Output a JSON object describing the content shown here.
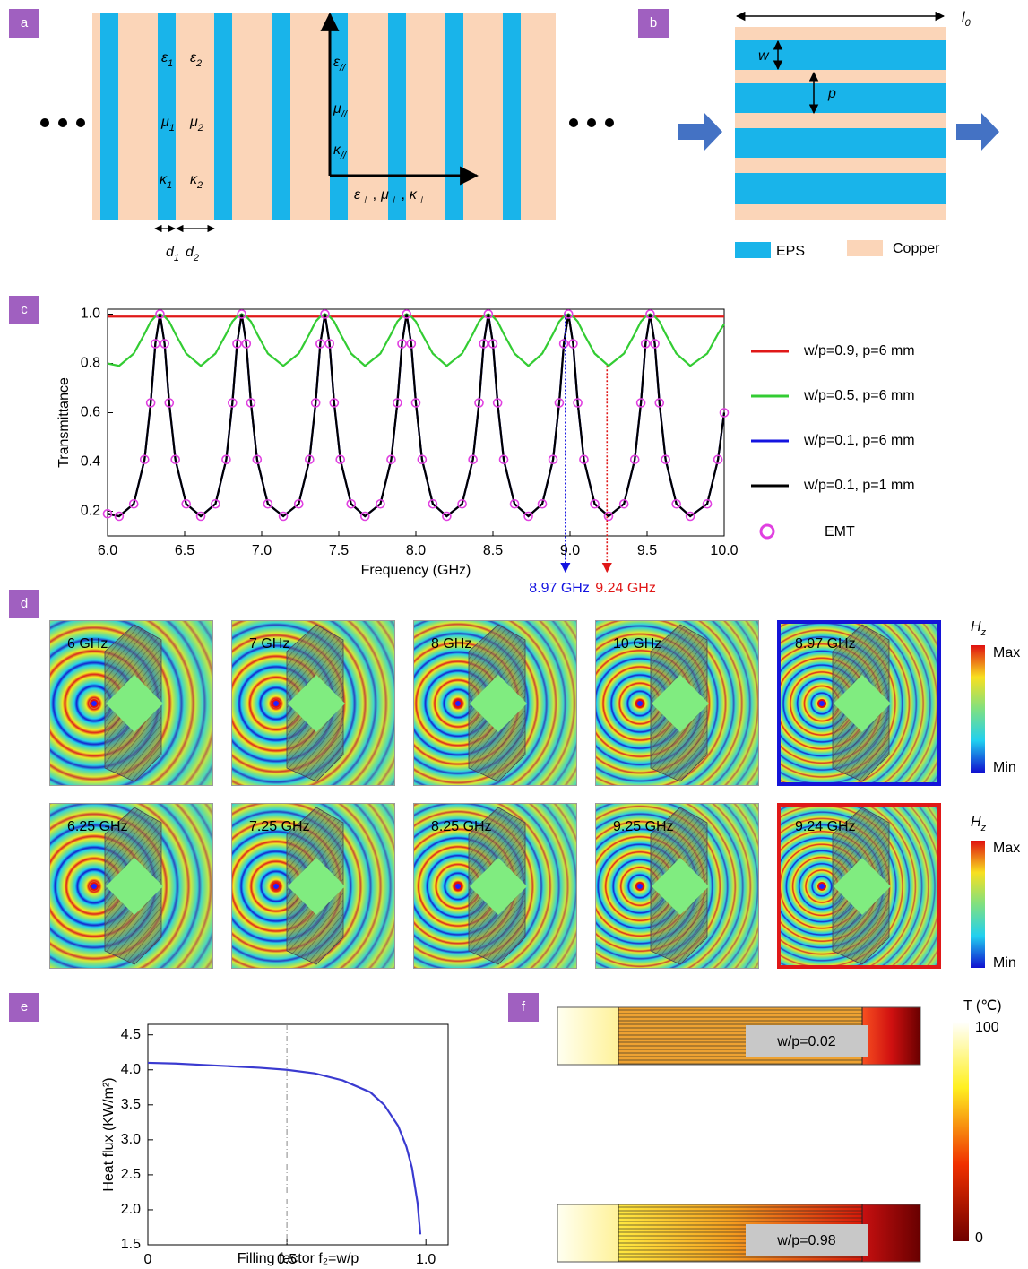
{
  "panel_labels": [
    "a",
    "b",
    "c",
    "d",
    "e",
    "f"
  ],
  "panel_a": {
    "layer_labels": [
      {
        "base": "ε",
        "sub": "1"
      },
      {
        "base": "ε",
        "sub": "2"
      },
      {
        "base": "μ",
        "sub": "1"
      },
      {
        "base": "μ",
        "sub": "2"
      },
      {
        "base": "κ",
        "sub": "1"
      },
      {
        "base": "κ",
        "sub": "2"
      }
    ],
    "parallel_labels": [
      {
        "base": "ε",
        "sub": "//"
      },
      {
        "base": "μ",
        "sub": "//"
      },
      {
        "base": "κ",
        "sub": "//"
      }
    ],
    "perp_labels": [
      {
        "base": "ε",
        "sub": "⊥"
      },
      {
        "base": "μ",
        "sub": "⊥"
      },
      {
        "base": "κ",
        "sub": "⊥"
      }
    ],
    "perp_separator": ",",
    "thickness_labels": [
      {
        "base": "d",
        "sub": "1"
      },
      {
        "base": "d",
        "sub": "2"
      }
    ]
  },
  "panel_b": {
    "length_label": {
      "base": "l",
      "sub": "0"
    },
    "w_label": "w",
    "p_label": "p",
    "legend": [
      "EPS",
      "Copper"
    ]
  },
  "panel_d": {
    "rows": [
      [
        "6 GHz",
        "7 GHz",
        "8 GHz",
        "10 GHz",
        "8.97 GHz"
      ],
      [
        "6.25 GHz",
        "7.25 GHz",
        "8.25 GHz",
        "9.25 GHz",
        "9.24 GHz"
      ]
    ],
    "colorbar": {
      "label": {
        "base": "H",
        "sub": "z"
      },
      "max": "Max",
      "min": "Min"
    }
  },
  "panel_f": {
    "labels": [
      "w/p=0.02",
      "w/p=0.98"
    ],
    "colorbar": {
      "label": "T (℃)",
      "max": "100",
      "min": "0"
    }
  },
  "chart_data": [
    {
      "type": "line",
      "xlabel": "Frequency (GHz)",
      "ylabel": "Transmittance",
      "xlim": [
        6,
        10
      ],
      "ylim": [
        0.1,
        1.02
      ],
      "xticks": [
        {
          "value": 6,
          "label": "6.0"
        },
        6.5,
        {
          "value": 7,
          "label": "7.0"
        },
        7.5,
        {
          "value": 8,
          "label": "8.0"
        },
        8.5,
        {
          "value": 9,
          "label": "9.0"
        },
        9.5,
        {
          "value": 10,
          "label": "10.0"
        }
      ],
      "yticks": [
        0.2,
        0.4,
        0.6,
        0.8,
        {
          "value": 1,
          "label": "1.0"
        }
      ],
      "grid": false,
      "legend": "right",
      "x": [
        6.0,
        6.075,
        6.17,
        6.24,
        6.28,
        6.31,
        6.34,
        6.37,
        6.4,
        6.44,
        6.51,
        6.605,
        6.7,
        6.77,
        6.81,
        6.84,
        6.87,
        6.9,
        6.93,
        6.97,
        7.04,
        7.14,
        7.24,
        7.31,
        7.35,
        7.38,
        7.41,
        7.44,
        7.47,
        7.51,
        7.58,
        7.67,
        7.77,
        7.84,
        7.88,
        7.91,
        7.94,
        7.97,
        8.0,
        8.04,
        8.11,
        8.2,
        8.3,
        8.37,
        8.41,
        8.44,
        8.47,
        8.5,
        8.53,
        8.57,
        8.64,
        8.73,
        8.82,
        8.89,
        8.93,
        8.96,
        8.99,
        9.02,
        9.05,
        9.09,
        9.16,
        9.25,
        9.35,
        9.42,
        9.46,
        9.49,
        9.52,
        9.55,
        9.58,
        9.62,
        9.69,
        9.78,
        9.89,
        9.96,
        10.0
      ],
      "series": [
        {
          "name": "w/p=0.9, p=6 mm",
          "color": "#e01818",
          "values": [
            0.99,
            0.99,
            0.99,
            0.99,
            0.99,
            0.99,
            0.99,
            0.99,
            0.99,
            0.99,
            0.99,
            0.99,
            0.99,
            0.99,
            0.99,
            0.99,
            0.99,
            0.99,
            0.99,
            0.99,
            0.99,
            0.99,
            0.99,
            0.99,
            0.99,
            0.99,
            0.99,
            0.99,
            0.99,
            0.99,
            0.99,
            0.99,
            0.99,
            0.99,
            0.99,
            0.99,
            0.99,
            0.99,
            0.99,
            0.99,
            0.99,
            0.99,
            0.99,
            0.99,
            0.99,
            0.99,
            0.99,
            0.99,
            0.99,
            0.99,
            0.99,
            0.99,
            0.99,
            0.99,
            0.99,
            0.99,
            0.99,
            0.99,
            0.99,
            0.99,
            0.99,
            0.99,
            0.99,
            0.99,
            0.99,
            0.99,
            0.99,
            0.99,
            0.99,
            0.99,
            0.99,
            0.99,
            0.99,
            0.99,
            0.99
          ]
        },
        {
          "name": "w/p=0.5, p=6 mm",
          "color": "#33cc33",
          "values": [
            0.8,
            0.79,
            0.84,
            0.92,
            0.97,
            0.99,
            1.0,
            0.99,
            0.97,
            0.92,
            0.84,
            0.79,
            0.84,
            0.92,
            0.97,
            0.99,
            1.0,
            0.99,
            0.97,
            0.92,
            0.84,
            0.79,
            0.84,
            0.92,
            0.97,
            0.99,
            1.0,
            0.99,
            0.97,
            0.92,
            0.84,
            0.79,
            0.84,
            0.92,
            0.97,
            0.99,
            1.0,
            0.99,
            0.97,
            0.92,
            0.84,
            0.79,
            0.84,
            0.92,
            0.97,
            0.99,
            1.0,
            0.99,
            0.97,
            0.92,
            0.84,
            0.79,
            0.84,
            0.92,
            0.97,
            0.99,
            1.0,
            0.99,
            0.97,
            0.92,
            0.84,
            0.79,
            0.84,
            0.92,
            0.97,
            0.99,
            1.0,
            0.99,
            0.97,
            0.92,
            0.84,
            0.79,
            0.84,
            0.92,
            0.96
          ]
        },
        {
          "name": "w/p=0.1, p=6 mm",
          "color": "#1414e0",
          "values": [
            0.19,
            0.18,
            0.23,
            0.41,
            0.64,
            0.88,
            1.0,
            0.88,
            0.64,
            0.41,
            0.23,
            0.18,
            0.23,
            0.41,
            0.64,
            0.88,
            1.0,
            0.88,
            0.64,
            0.41,
            0.23,
            0.18,
            0.23,
            0.41,
            0.64,
            0.88,
            1.0,
            0.88,
            0.64,
            0.41,
            0.23,
            0.18,
            0.23,
            0.41,
            0.64,
            0.88,
            1.0,
            0.88,
            0.64,
            0.41,
            0.23,
            0.18,
            0.23,
            0.41,
            0.64,
            0.88,
            1.0,
            0.88,
            0.64,
            0.41,
            0.23,
            0.18,
            0.23,
            0.41,
            0.64,
            0.88,
            1.0,
            0.88,
            0.64,
            0.41,
            0.23,
            0.18,
            0.23,
            0.41,
            0.64,
            0.88,
            1.0,
            0.88,
            0.64,
            0.41,
            0.23,
            0.18,
            0.23,
            0.41,
            0.6
          ]
        },
        {
          "name": "w/p=0.1, p=1 mm",
          "color": "#000000",
          "values": [
            0.19,
            0.18,
            0.23,
            0.41,
            0.64,
            0.88,
            1.0,
            0.88,
            0.64,
            0.41,
            0.23,
            0.18,
            0.23,
            0.41,
            0.64,
            0.88,
            1.0,
            0.88,
            0.64,
            0.41,
            0.23,
            0.18,
            0.23,
            0.41,
            0.64,
            0.88,
            1.0,
            0.88,
            0.64,
            0.41,
            0.23,
            0.18,
            0.23,
            0.41,
            0.64,
            0.88,
            1.0,
            0.88,
            0.64,
            0.41,
            0.23,
            0.18,
            0.23,
            0.41,
            0.64,
            0.88,
            1.0,
            0.88,
            0.64,
            0.41,
            0.23,
            0.18,
            0.23,
            0.41,
            0.64,
            0.88,
            1.0,
            0.88,
            0.64,
            0.41,
            0.23,
            0.18,
            0.23,
            0.41,
            0.64,
            0.88,
            1.0,
            0.88,
            0.64,
            0.41,
            0.23,
            0.18,
            0.23,
            0.41,
            0.6
          ]
        },
        {
          "name": "EMT",
          "color": "#e040e0",
          "marker": "circle",
          "values": [
            0.19,
            0.18,
            0.23,
            0.41,
            0.64,
            0.88,
            1.0,
            0.88,
            0.64,
            0.41,
            0.23,
            0.18,
            0.23,
            0.41,
            0.64,
            0.88,
            1.0,
            0.88,
            0.64,
            0.41,
            0.23,
            0.18,
            0.23,
            0.41,
            0.64,
            0.88,
            1.0,
            0.88,
            0.64,
            0.41,
            0.23,
            0.18,
            0.23,
            0.41,
            0.64,
            0.88,
            1.0,
            0.88,
            0.64,
            0.41,
            0.23,
            0.18,
            0.23,
            0.41,
            0.64,
            0.88,
            1.0,
            0.88,
            0.64,
            0.41,
            0.23,
            0.18,
            0.23,
            0.41,
            0.64,
            0.88,
            1.0,
            0.88,
            0.64,
            0.41,
            0.23,
            0.18,
            0.23,
            0.41,
            0.64,
            0.88,
            1.0,
            0.88,
            0.64,
            0.41,
            0.23,
            0.18,
            0.23,
            0.41,
            0.6
          ]
        }
      ],
      "annotations": [
        {
          "text": "8.97 GHz",
          "x": 8.97,
          "y": 1.0,
          "color": "#1414e0"
        },
        {
          "text": "9.24 GHz",
          "x": 9.24,
          "y": 0.79,
          "color": "#e01818"
        }
      ]
    },
    {
      "type": "line",
      "xlabel": "Filling factor f₂=w/p",
      "ylabel": "Heat flux (KW/m²)",
      "xlim": [
        0,
        1.08
      ],
      "ylim": [
        1.5,
        4.65
      ],
      "xticks": [
        0,
        0.5,
        {
          "value": 1,
          "label": "1.0"
        }
      ],
      "yticks": [
        1.5,
        {
          "value": 2,
          "label": "2.0"
        },
        2.5,
        {
          "value": 3,
          "label": "3.0"
        },
        3.5,
        {
          "value": 4,
          "label": "4.0"
        },
        4.5
      ],
      "grid": false,
      "vline": 0.5,
      "x": [
        0,
        0.1,
        0.2,
        0.3,
        0.4,
        0.5,
        0.6,
        0.7,
        0.8,
        0.85,
        0.9,
        0.93,
        0.95,
        0.97,
        0.98
      ],
      "series": [
        {
          "color": "#3a3ad0",
          "values": [
            4.1,
            4.09,
            4.07,
            4.05,
            4.03,
            4.0,
            3.95,
            3.85,
            3.68,
            3.5,
            3.2,
            2.9,
            2.6,
            2.1,
            1.65
          ]
        }
      ]
    }
  ]
}
